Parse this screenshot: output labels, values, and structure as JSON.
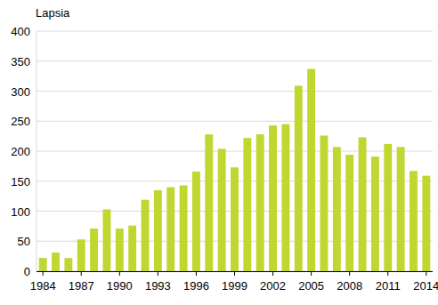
{
  "chart_data": {
    "type": "bar",
    "y_label": "Lapsia",
    "categories": [
      1984,
      null,
      null,
      1987,
      null,
      null,
      1990,
      null,
      null,
      1993,
      null,
      null,
      1996,
      null,
      null,
      1999,
      null,
      null,
      2002,
      null,
      null,
      2005,
      null,
      null,
      2008,
      null,
      null,
      2011,
      null,
      null,
      2014
    ],
    "values": [
      22,
      31,
      22,
      53,
      71,
      103,
      71,
      76,
      119,
      135,
      140,
      143,
      166,
      228,
      204,
      173,
      222,
      228,
      243,
      245,
      309,
      337,
      226,
      207,
      194,
      223,
      191,
      212,
      207,
      167,
      159
    ],
    "color": "#bfd730",
    "ylim": [
      0,
      400
    ],
    "yticks": [
      0,
      50,
      100,
      150,
      200,
      250,
      300,
      350,
      400
    ],
    "grid": true
  }
}
